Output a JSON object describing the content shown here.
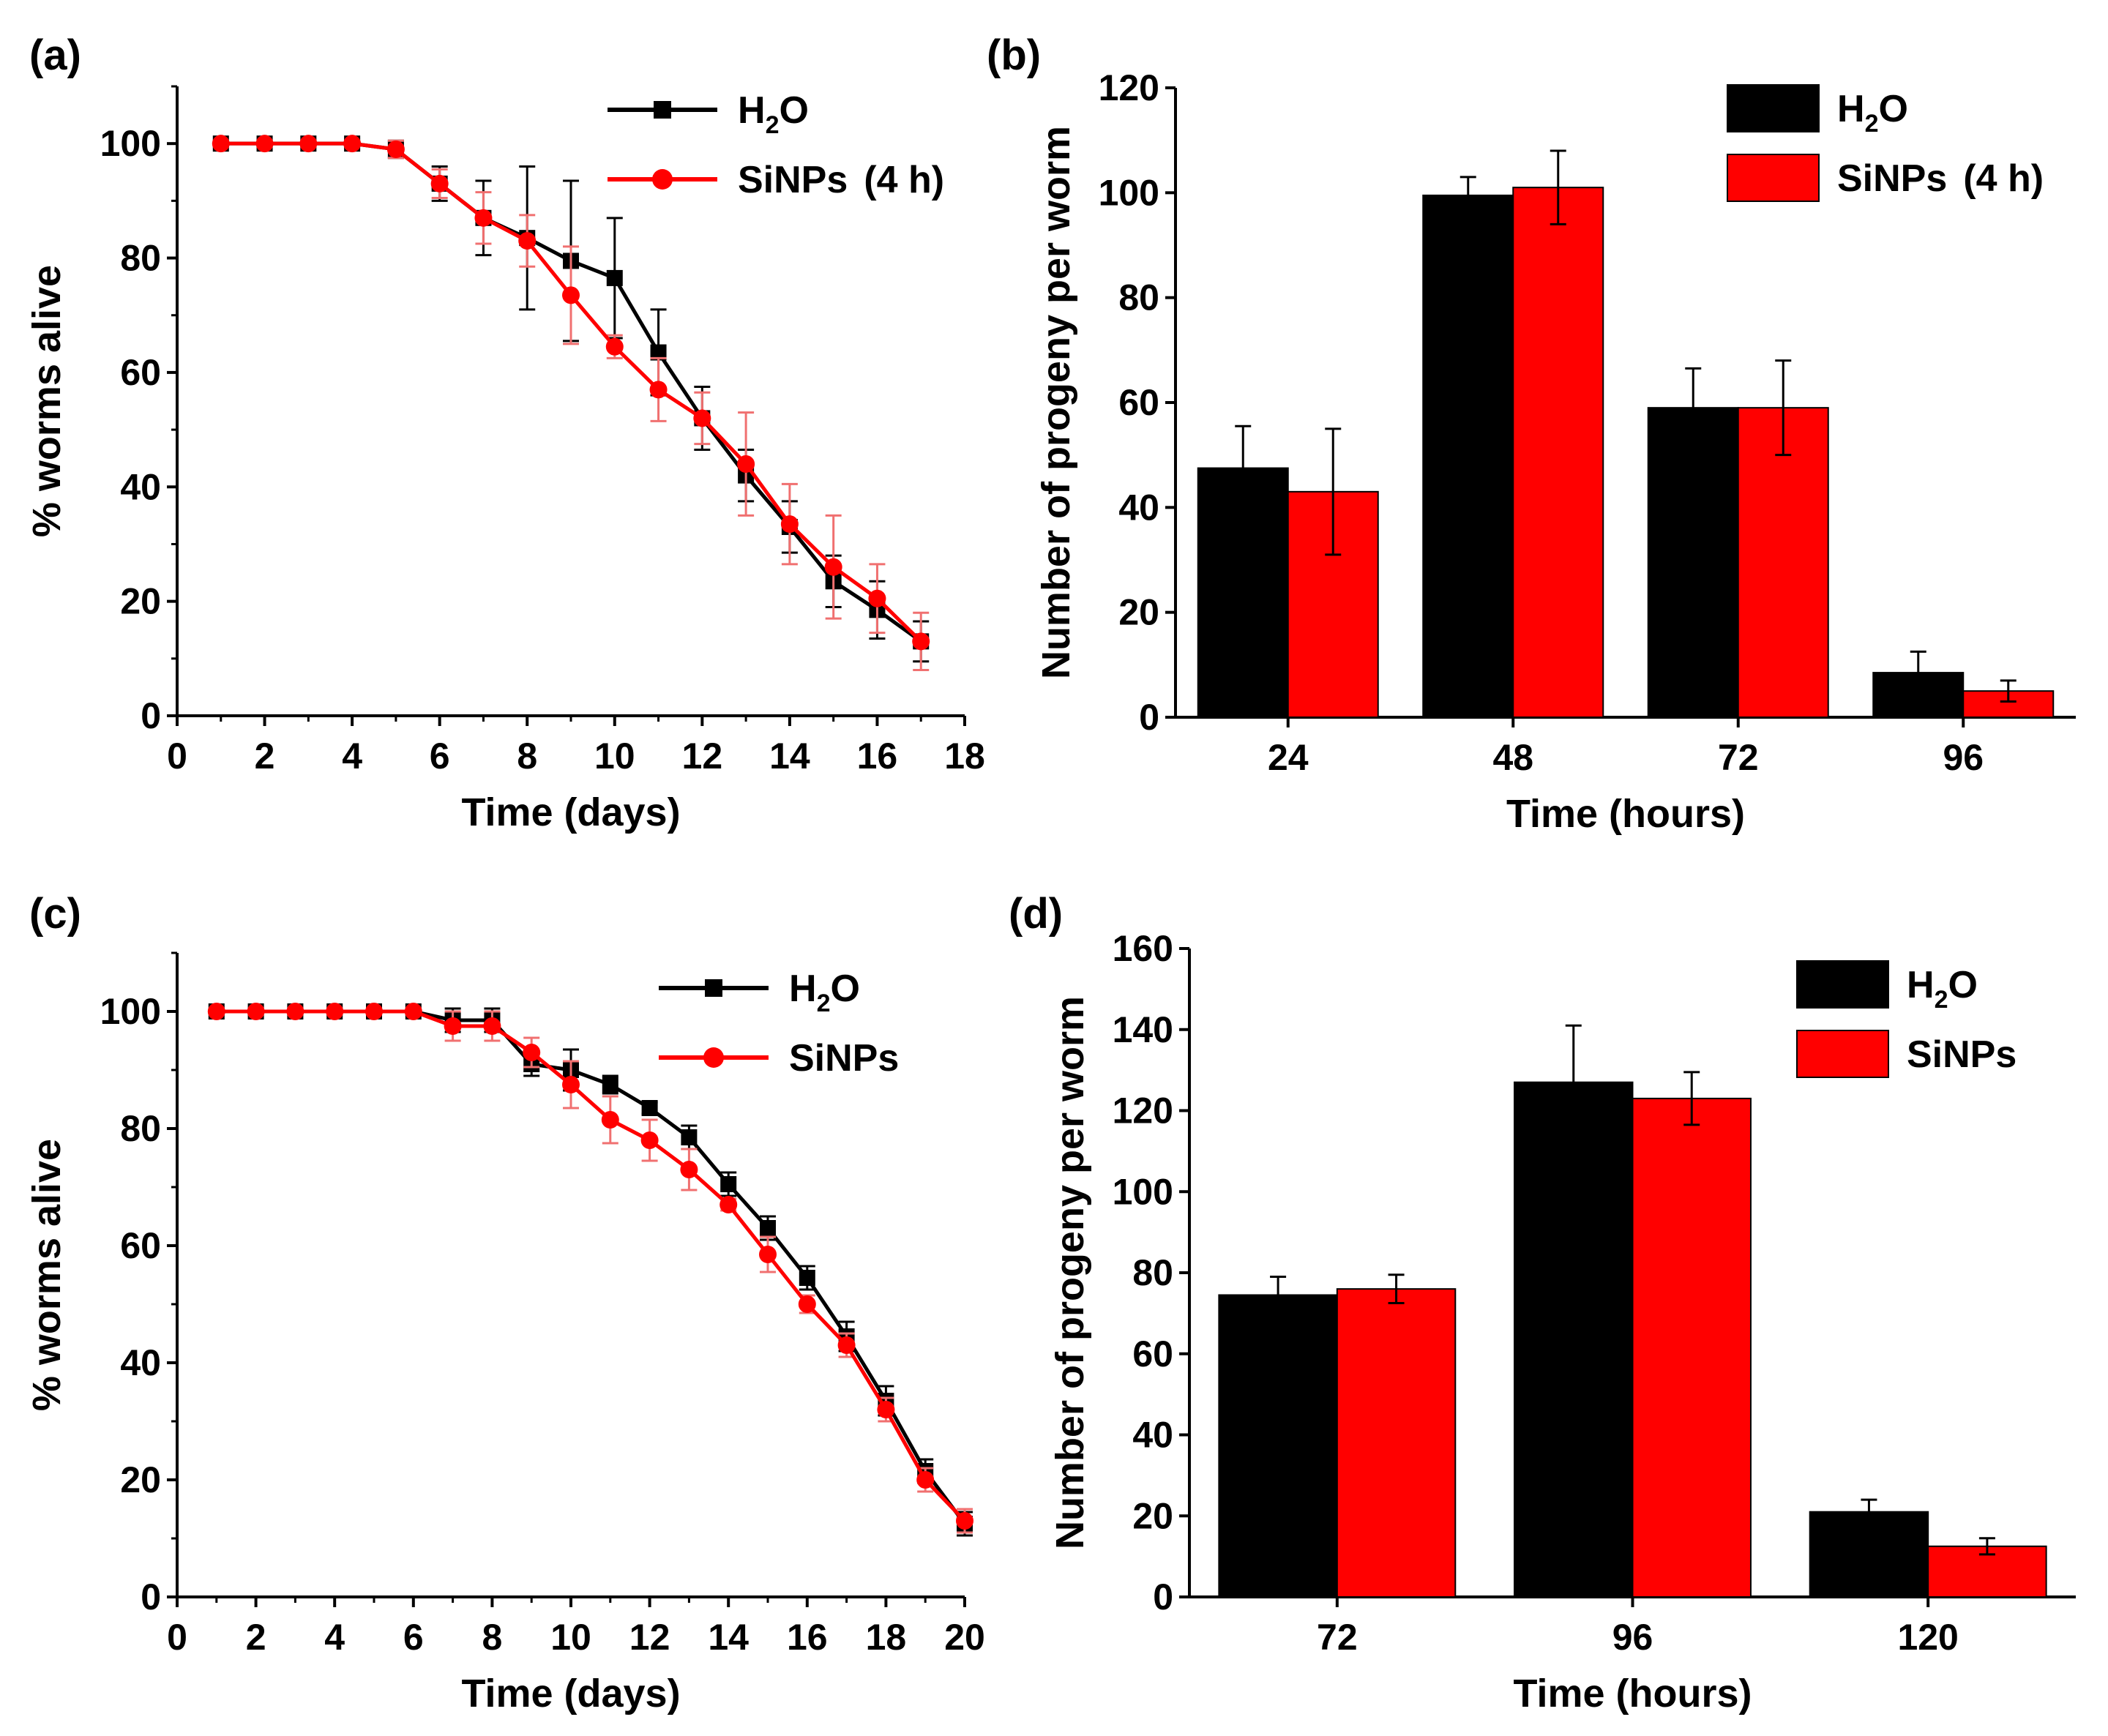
{
  "colors": {
    "h2o": "#000000",
    "sinps": "#ff0000",
    "sinps_error": "#f07070"
  },
  "chart_data": [
    {
      "id": "a",
      "panel_label": "(a)",
      "type": "line",
      "xlabel": "Time (days)",
      "ylabel": "% worms alive",
      "xlim": [
        0,
        18
      ],
      "ylim": [
        0,
        110
      ],
      "xticks": [
        0,
        2,
        4,
        6,
        8,
        10,
        12,
        14,
        16,
        18
      ],
      "yticks": [
        0,
        20,
        40,
        60,
        80,
        100
      ],
      "legend_position": "top-right",
      "legend_suffix": "(4 h)",
      "series": [
        {
          "name": "H2O",
          "name_main": "H",
          "name_sub": "2",
          "name_tail": "O",
          "marker": "square",
          "x": [
            1,
            2,
            3,
            4,
            5,
            6,
            7,
            8,
            9,
            10,
            11,
            12,
            13,
            14,
            15,
            16,
            17
          ],
          "y": [
            100,
            100,
            100,
            100,
            99,
            93,
            87,
            83.5,
            79.5,
            76.5,
            63.5,
            52,
            42,
            33,
            23.5,
            18.5,
            13
          ],
          "err": [
            0,
            0,
            0,
            0,
            1.5,
            3,
            6.5,
            12.5,
            14,
            10.5,
            7.5,
            5.5,
            4.5,
            4.5,
            4.5,
            5,
            3.5
          ]
        },
        {
          "name": "SiNPs",
          "name_main": "SiNPs",
          "name_sub": "",
          "name_tail": "",
          "marker": "circle",
          "x": [
            1,
            2,
            3,
            4,
            5,
            6,
            7,
            8,
            9,
            10,
            11,
            12,
            13,
            14,
            15,
            16,
            17
          ],
          "y": [
            100,
            100,
            100,
            100,
            99,
            93,
            87,
            83,
            73.5,
            64.5,
            57,
            52,
            44,
            33.5,
            26,
            20.5,
            13
          ],
          "err": [
            0,
            0,
            0,
            0,
            1.5,
            2.5,
            4.5,
            4.5,
            8.5,
            2,
            5.5,
            4.5,
            9,
            7,
            9,
            6,
            5
          ]
        }
      ]
    },
    {
      "id": "b",
      "panel_label": "(b)",
      "type": "bar",
      "xlabel": "Time (hours)",
      "ylabel": "Number of progeny per worm",
      "ylim": [
        0,
        120
      ],
      "yticks": [
        0,
        20,
        40,
        60,
        80,
        100,
        120
      ],
      "categories": [
        "24",
        "48",
        "72",
        "96"
      ],
      "legend_position": "top-right",
      "legend_suffix": "(4 h)",
      "series": [
        {
          "name": "H2O",
          "name_main": "H",
          "name_sub": "2",
          "name_tail": "O",
          "values": [
            47.5,
            99.5,
            59,
            8.5
          ],
          "err": [
            8,
            3.5,
            7.5,
            4
          ]
        },
        {
          "name": "SiNPs",
          "name_main": "SiNPs",
          "name_sub": "",
          "name_tail": "",
          "values": [
            43,
            101,
            59,
            5
          ],
          "err": [
            12,
            7,
            9,
            2
          ]
        }
      ]
    },
    {
      "id": "c",
      "panel_label": "(c)",
      "type": "line",
      "xlabel": "Time (days)",
      "ylabel": "% worms alive",
      "xlim": [
        0,
        20
      ],
      "ylim": [
        0,
        110
      ],
      "xticks": [
        0,
        2,
        4,
        6,
        8,
        10,
        12,
        14,
        16,
        18,
        20
      ],
      "yticks": [
        0,
        20,
        40,
        60,
        80,
        100
      ],
      "legend_position": "top-right",
      "legend_suffix": "",
      "series": [
        {
          "name": "H2O",
          "name_main": "H",
          "name_sub": "2",
          "name_tail": "O",
          "marker": "square",
          "x": [
            1,
            2,
            3,
            4,
            5,
            6,
            7,
            8,
            9,
            10,
            11,
            12,
            13,
            14,
            15,
            16,
            17,
            18,
            19,
            20
          ],
          "y": [
            100,
            100,
            100,
            100,
            100,
            100,
            98.5,
            98.5,
            91,
            90,
            87.5,
            83.5,
            78.5,
            70.5,
            63,
            54.5,
            44.5,
            33.5,
            21.5,
            12.5
          ],
          "err": [
            0,
            0,
            0,
            0,
            0,
            0,
            2,
            2,
            2,
            3.5,
            1.5,
            1,
            2,
            2,
            2,
            2,
            2.5,
            2.5,
            2,
            2
          ]
        },
        {
          "name": "SiNPs",
          "name_main": "SiNPs",
          "name_sub": "",
          "name_tail": "",
          "marker": "circle",
          "x": [
            1,
            2,
            3,
            4,
            5,
            6,
            7,
            8,
            9,
            10,
            11,
            12,
            13,
            14,
            15,
            16,
            17,
            18,
            19,
            20
          ],
          "y": [
            100,
            100,
            100,
            100,
            100,
            100,
            97.5,
            97.5,
            93,
            87.5,
            81.5,
            78,
            73,
            67,
            58.5,
            50,
            43,
            32,
            20,
            13
          ],
          "err": [
            0,
            0,
            0,
            0,
            0,
            0,
            2.5,
            2.5,
            2.5,
            4,
            4,
            3.5,
            3.5,
            1,
            3,
            1.5,
            2,
            2,
            2,
            2
          ]
        }
      ]
    },
    {
      "id": "d",
      "panel_label": "(d)",
      "type": "bar",
      "xlabel": "Time (hours)",
      "ylabel": "Number of progeny per worm",
      "ylim": [
        0,
        160
      ],
      "yticks": [
        0,
        20,
        40,
        60,
        80,
        100,
        120,
        140,
        160
      ],
      "categories": [
        "72",
        "96",
        "120"
      ],
      "legend_position": "top-right",
      "legend_suffix": "",
      "series": [
        {
          "name": "H2O",
          "name_main": "H",
          "name_sub": "2",
          "name_tail": "O",
          "values": [
            74.5,
            127,
            21
          ],
          "err": [
            4.5,
            14,
            3
          ]
        },
        {
          "name": "SiNPs",
          "name_main": "SiNPs",
          "name_sub": "",
          "name_tail": "",
          "values": [
            76,
            123,
            12.5
          ],
          "err": [
            3.5,
            6.5,
            2
          ]
        }
      ]
    }
  ]
}
